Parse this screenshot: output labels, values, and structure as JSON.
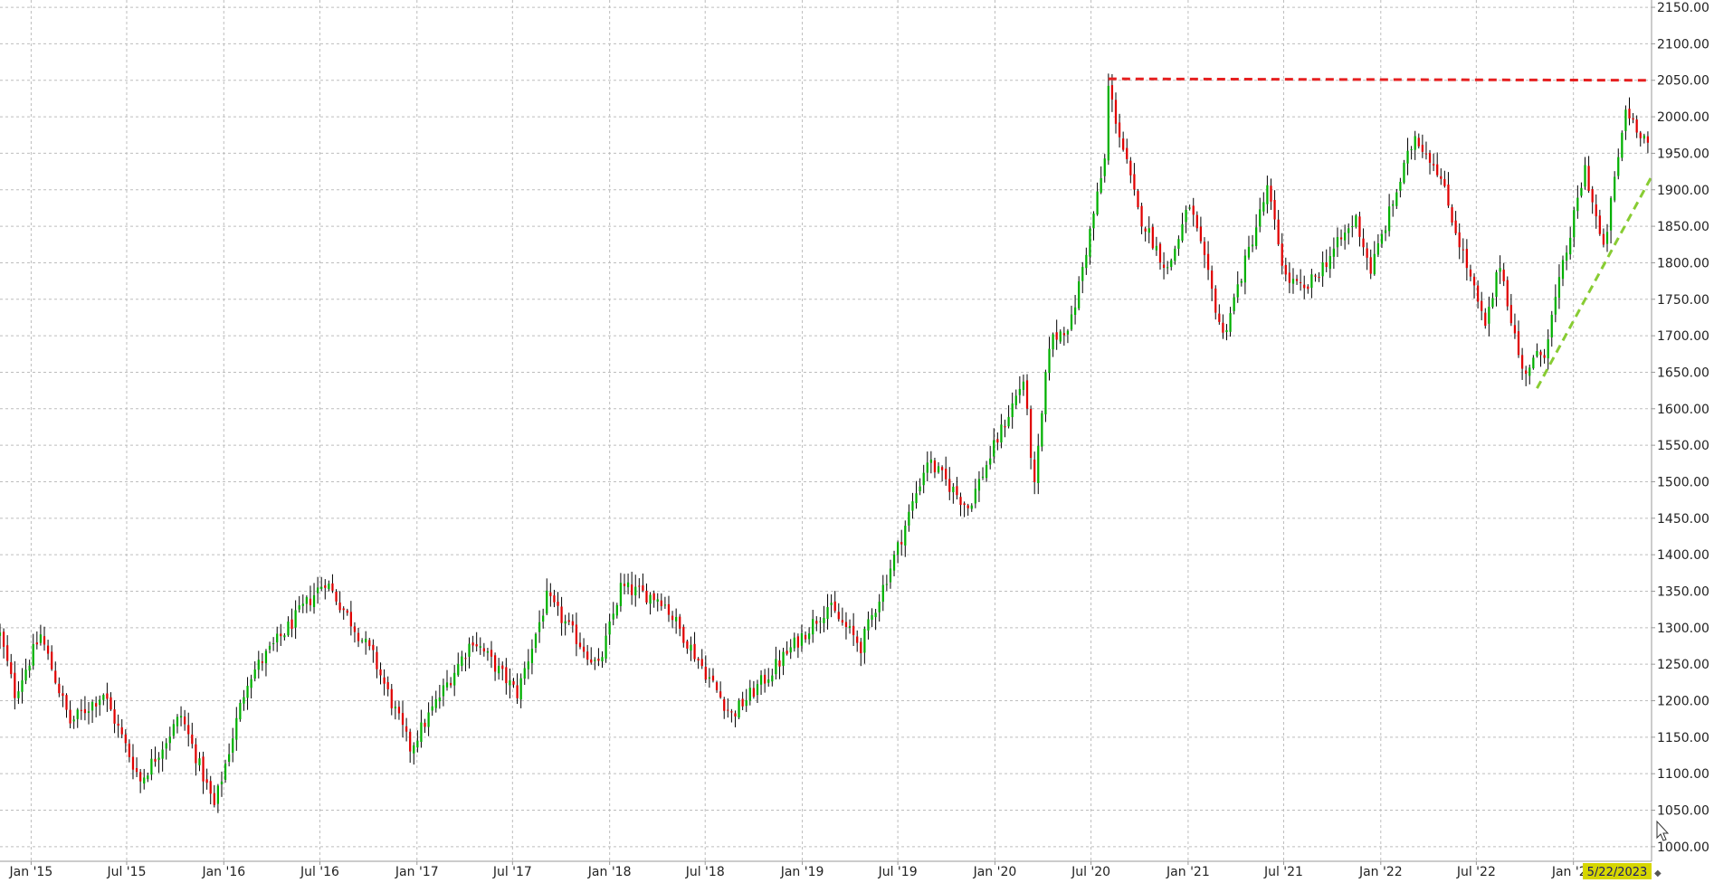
{
  "chart_data": {
    "type": "candlestick",
    "title": "",
    "xlabel": "",
    "ylabel": "",
    "ylim": [
      980,
      2160
    ],
    "xlim": [
      "2014-11-03",
      "2023-05-29"
    ],
    "y_ticks": [
      "1000.00",
      "1050.00",
      "1100.00",
      "1150.00",
      "1200.00",
      "1250.00",
      "1300.00",
      "1350.00",
      "1400.00",
      "1450.00",
      "1500.00",
      "1550.00",
      "1600.00",
      "1650.00",
      "1700.00",
      "1750.00",
      "1800.00",
      "1850.00",
      "1900.00",
      "1950.00",
      "2000.00",
      "2050.00",
      "2100.00",
      "2150.00"
    ],
    "x_ticks": [
      {
        "label": "Jan '15",
        "date": "2015-01-01"
      },
      {
        "label": "Jul '15",
        "date": "2015-07-01"
      },
      {
        "label": "Jan '16",
        "date": "2016-01-01"
      },
      {
        "label": "Jul '16",
        "date": "2016-07-01"
      },
      {
        "label": "Jan '17",
        "date": "2017-01-01"
      },
      {
        "label": "Jul '17",
        "date": "2017-07-01"
      },
      {
        "label": "Jan '18",
        "date": "2018-01-01"
      },
      {
        "label": "Jul '18",
        "date": "2018-07-01"
      },
      {
        "label": "Jan '19",
        "date": "2019-01-01"
      },
      {
        "label": "Jul '19",
        "date": "2019-07-01"
      },
      {
        "label": "Jan '20",
        "date": "2020-01-01"
      },
      {
        "label": "Jul '20",
        "date": "2020-07-01"
      },
      {
        "label": "Jan '21",
        "date": "2021-01-01"
      },
      {
        "label": "Jul '21",
        "date": "2021-07-01"
      },
      {
        "label": "Jan '22",
        "date": "2022-01-01"
      },
      {
        "label": "Jul '22",
        "date": "2022-07-01"
      },
      {
        "label": "Jan '23",
        "date": "2023-01-01"
      }
    ],
    "current_date_label": "5/22/2023",
    "grid": true,
    "colors": {
      "up": "#00b000",
      "down": "#e00000",
      "wick": "#000000",
      "grid": "#bdbdbd",
      "resistance": "#e62020",
      "support": "#88cc33",
      "date_badge": "#d6d600"
    },
    "price_path": [
      {
        "date": "2014-11-03",
        "close": 1290
      },
      {
        "date": "2014-12-01",
        "close": 1210
      },
      {
        "date": "2015-01-19",
        "close": 1290
      },
      {
        "date": "2015-03-16",
        "close": 1170
      },
      {
        "date": "2015-05-18",
        "close": 1210
      },
      {
        "date": "2015-07-27",
        "close": 1090
      },
      {
        "date": "2015-10-12",
        "close": 1180
      },
      {
        "date": "2015-12-14",
        "close": 1055
      },
      {
        "date": "2016-02-15",
        "close": 1230
      },
      {
        "date": "2016-07-11",
        "close": 1365
      },
      {
        "date": "2016-10-10",
        "close": 1260
      },
      {
        "date": "2016-12-19",
        "close": 1135
      },
      {
        "date": "2017-04-17",
        "close": 1285
      },
      {
        "date": "2017-07-10",
        "close": 1210
      },
      {
        "date": "2017-09-04",
        "close": 1340
      },
      {
        "date": "2017-12-11",
        "close": 1245
      },
      {
        "date": "2018-01-22",
        "close": 1355
      },
      {
        "date": "2018-04-09",
        "close": 1340
      },
      {
        "date": "2018-08-20",
        "close": 1180
      },
      {
        "date": "2018-10-22",
        "close": 1230
      },
      {
        "date": "2019-02-18",
        "close": 1330
      },
      {
        "date": "2019-04-22",
        "close": 1275
      },
      {
        "date": "2019-07-01",
        "close": 1410
      },
      {
        "date": "2019-08-26",
        "close": 1530
      },
      {
        "date": "2019-11-11",
        "close": 1465
      },
      {
        "date": "2020-02-24",
        "close": 1640
      },
      {
        "date": "2020-03-16",
        "close": 1490
      },
      {
        "date": "2020-04-13",
        "close": 1690
      },
      {
        "date": "2020-05-25",
        "close": 1720
      },
      {
        "date": "2020-07-27",
        "close": 1940
      },
      {
        "date": "2020-08-03",
        "close": 2040
      },
      {
        "date": "2020-09-28",
        "close": 1870
      },
      {
        "date": "2020-11-23",
        "close": 1790
      },
      {
        "date": "2021-01-04",
        "close": 1880
      },
      {
        "date": "2021-03-08",
        "close": 1700
      },
      {
        "date": "2021-05-31",
        "close": 1900
      },
      {
        "date": "2021-07-05",
        "close": 1780
      },
      {
        "date": "2021-08-09",
        "close": 1760
      },
      {
        "date": "2021-11-15",
        "close": 1860
      },
      {
        "date": "2021-12-13",
        "close": 1790
      },
      {
        "date": "2022-03-07",
        "close": 1975
      },
      {
        "date": "2022-04-18",
        "close": 1930
      },
      {
        "date": "2022-07-18",
        "close": 1710
      },
      {
        "date": "2022-08-15",
        "close": 1800
      },
      {
        "date": "2022-09-26",
        "close": 1650
      },
      {
        "date": "2022-11-07",
        "close": 1680
      },
      {
        "date": "2023-01-23",
        "close": 1930
      },
      {
        "date": "2023-02-27",
        "close": 1815
      },
      {
        "date": "2023-04-10",
        "close": 2010
      },
      {
        "date": "2023-05-22",
        "close": 1965
      }
    ],
    "annotations": [
      {
        "type": "resistance-line",
        "start": {
          "date": "2020-08-03",
          "value": 2052
        },
        "end": {
          "date": "2023-05-29",
          "value": 2050
        }
      },
      {
        "type": "support-line",
        "start": {
          "date": "2022-10-24",
          "value": 1628
        },
        "end": {
          "date": "2023-05-29",
          "value": 1918
        }
      }
    ]
  }
}
